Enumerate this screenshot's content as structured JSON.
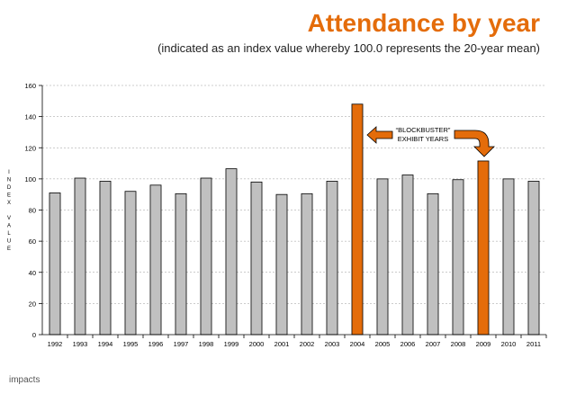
{
  "header": {
    "title": "Attendance by year",
    "subtitle": "(indicated as an index value whereby 100.0 represents the 20-year mean)"
  },
  "annotation": {
    "line1": "“BLOCKBUSTER”",
    "line2": "EXHIBIT YEARS"
  },
  "footer": {
    "logo_text": "impacts"
  },
  "colors": {
    "bar_default": "#c0c0c0",
    "bar_highlight": "#e46c0a",
    "bar_stroke": "#000000",
    "title": "#e46c0a",
    "grid": "#9a9a9a"
  },
  "chart_data": {
    "type": "bar",
    "title": "Attendance by year",
    "subtitle": "(indicated as an index value whereby 100.0 represents the 20-year mean)",
    "xlabel": "",
    "ylabel": "INDEX VALUE",
    "ylim": [
      0,
      160
    ],
    "yticks": [
      0,
      20,
      40,
      60,
      80,
      100,
      120,
      140,
      160
    ],
    "grid": true,
    "categories": [
      "1992",
      "1993",
      "1994",
      "1995",
      "1996",
      "1997",
      "1998",
      "1999",
      "2000",
      "2001",
      "2002",
      "2003",
      "2004",
      "2005",
      "2006",
      "2007",
      "2008",
      "2009",
      "2010",
      "2011"
    ],
    "values": [
      91,
      100.5,
      98.5,
      92,
      96,
      90.5,
      100.5,
      106.5,
      98,
      90,
      90.5,
      98.5,
      148,
      100,
      102.5,
      90.5,
      99.5,
      111.5,
      100,
      98.5
    ],
    "highlighted": [
      "2004",
      "2009"
    ],
    "annotations": [
      "“BLOCKBUSTER” EXHIBIT YEARS"
    ]
  }
}
